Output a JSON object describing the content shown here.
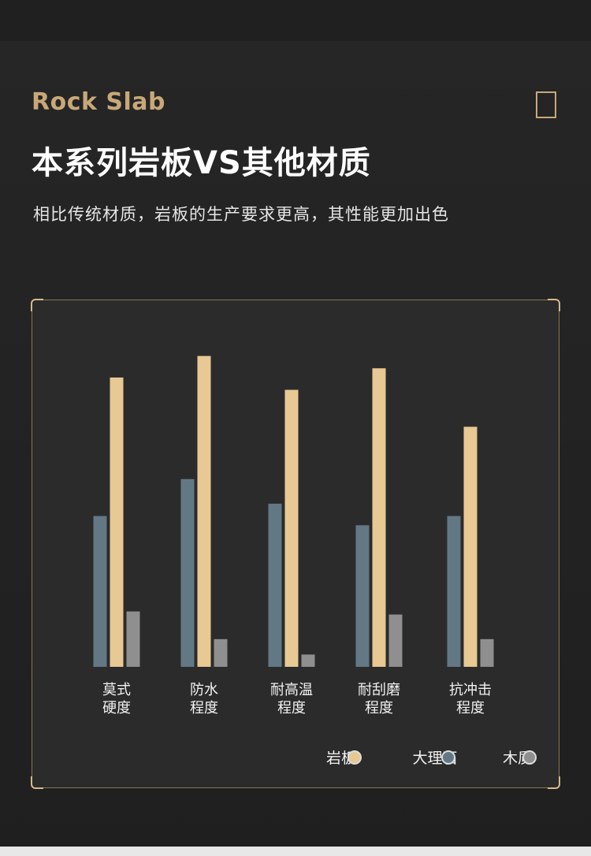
{
  "header": {
    "eyebrow": "Rock Slab",
    "title": "本系列岩板VS其他材质",
    "subtitle": "相比传统材质，岩板的生产要求更高，其性能更加出色"
  },
  "colors": {
    "gold": "#c8a878",
    "rock_slab": "#e8c893",
    "marble": "#637885",
    "wood": "#8f8f8f"
  },
  "chart_data": {
    "type": "bar",
    "categories": [
      [
        "莫式",
        "硬度"
      ],
      [
        "防水",
        "程度"
      ],
      [
        "耐高温",
        "程度"
      ],
      [
        "耐刮磨",
        "程度"
      ],
      [
        "抗冲击",
        "程度"
      ]
    ],
    "series": [
      {
        "name": "大理石",
        "color": "#637885",
        "values": [
          49,
          61,
          53,
          46,
          49
        ]
      },
      {
        "name": "岩板",
        "color": "#e8c893",
        "values": [
          94,
          101,
          90,
          97,
          78
        ]
      },
      {
        "name": "木质",
        "color": "#8f8f8f",
        "values": [
          18,
          9,
          4,
          17,
          9
        ]
      }
    ],
    "legend": {
      "placement": "bottom-right",
      "order": [
        "岩板",
        "大理石",
        "木质"
      ]
    },
    "ylim": [
      0,
      105
    ],
    "grid": false,
    "axes_visible": false
  }
}
